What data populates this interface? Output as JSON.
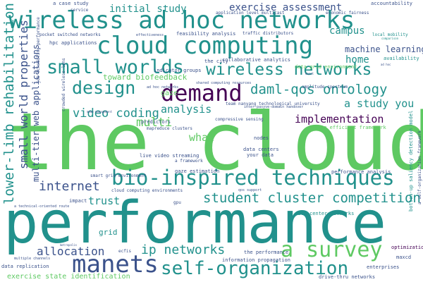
{
  "palette": {
    "purple": "#440154",
    "indigo": "#3b528b",
    "teal": "#21918c",
    "green": "#5ec962",
    "yellow": "#b5de2b"
  },
  "words": [
    "the cloud",
    "performance",
    "wireless ad hoc networks",
    "cloud computing",
    "a survey",
    "bio-inspired techniques",
    "manets",
    "self-organization",
    "demand",
    "small worlds",
    "wireless networks",
    "design",
    "daml-qos ontology",
    "student cluster competition",
    "implementation",
    "internet",
    "video coding",
    "allocation",
    "ip networks",
    "analysis",
    "multi",
    "trust",
    "what",
    "initial study",
    "exercise assessment",
    "campus",
    "home",
    "machine learning",
    "a study you",
    "lower-limb rehabilitation",
    "small world properties",
    "multi-tier web applications",
    "hpc applications",
    "pocket switched networks",
    "feasibility analysis",
    "collaborative analytics",
    "accountability",
    "economic fairness",
    "a case study",
    "service",
    "application level multicast",
    "toward biofeedback",
    "indicator groups",
    "gaze",
    "the city",
    "data grid environment",
    "grid",
    "nodes",
    "exercise state identification",
    "drive-thru networks",
    "the performance",
    "enterprises",
    "maxcd",
    "optimization",
    "data replication",
    "multiple channels",
    "information propagation",
    "gaze estimation",
    "smart grid environment",
    "performance analysis",
    "live video streaming",
    "data center networks",
    "an efficient framework",
    "data centers",
    "your data",
    "predictors",
    "mapreduce clusters",
    "compressive sensing",
    "team nanyang technological university",
    "amplitude spectrum",
    "local mobility",
    "availability",
    "traffic distributors",
    "effectiveness",
    "crowded wireless lans",
    "job scheduling performance",
    "bottom-up saliency detection model",
    "a self-organization framework",
    "a framework",
    "cloud computing environments",
    "impact",
    "a technical-oriented route",
    "shared computing resources",
    "ad hoc networks",
    "comparison",
    "inter-pasyve-domain handover",
    "qos support",
    "ad hoc",
    "ecfis",
    "gpu",
    "metropolis",
    "manet",
    "memo management"
  ]
}
